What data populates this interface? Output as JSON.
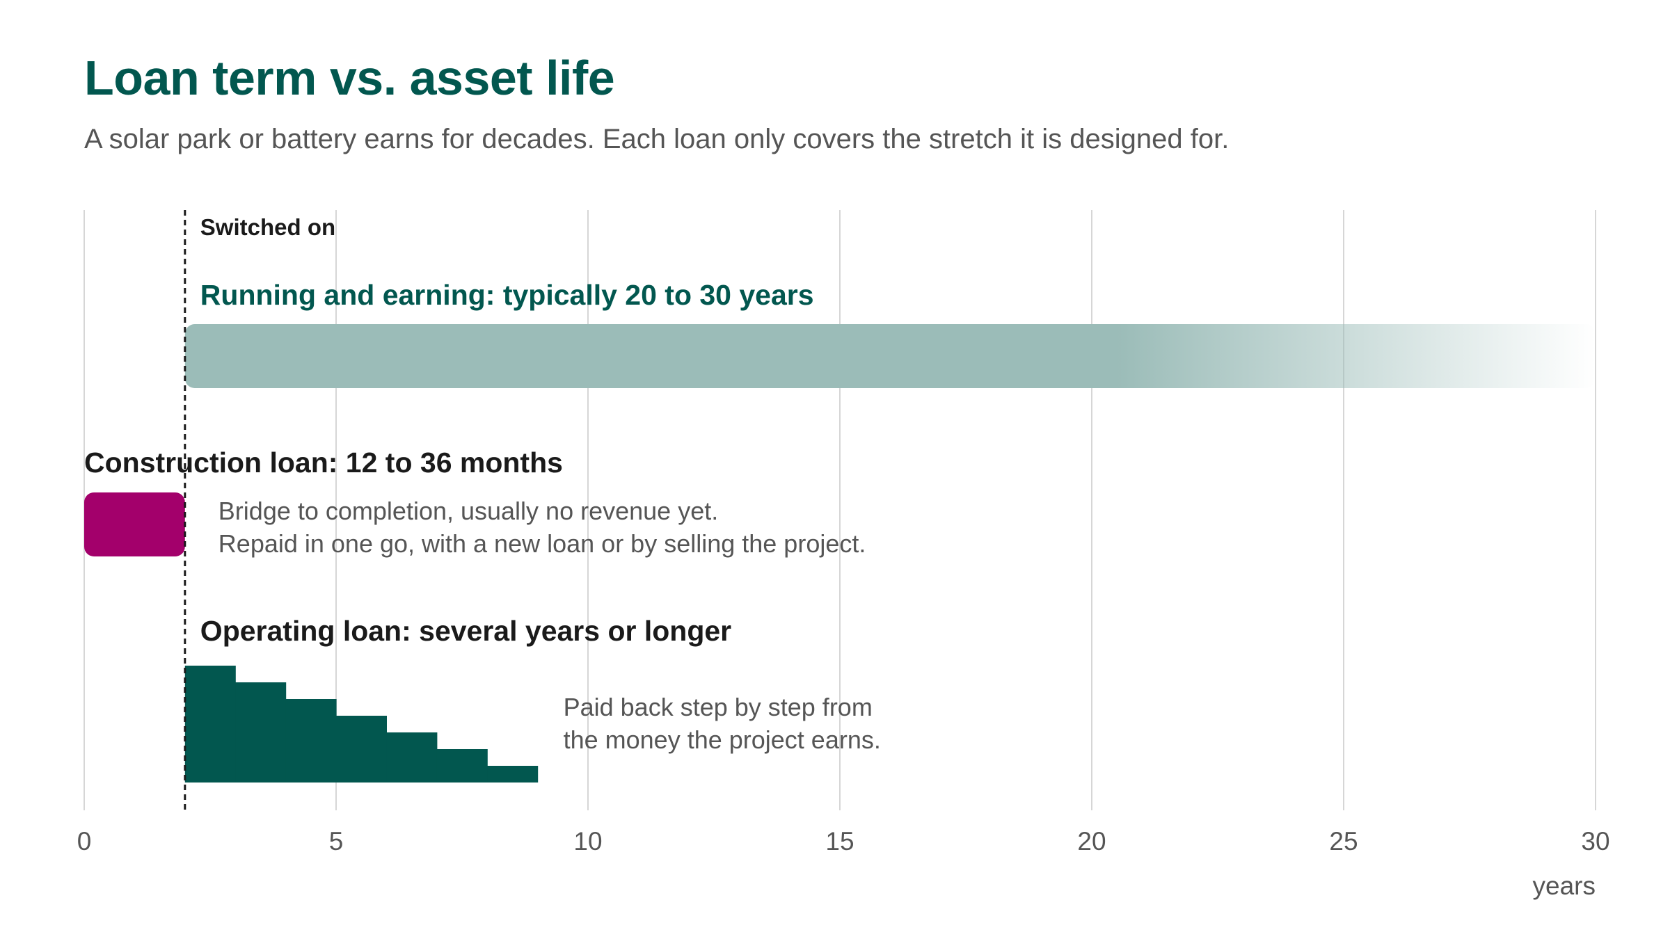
{
  "header": {
    "title": "Loan term vs. asset life",
    "subtitle": "A solar park or battery earns for decades. Each loan only covers the stretch it is designed for."
  },
  "chart_data": {
    "type": "timeline",
    "x_axis": {
      "label": "years",
      "range": [
        0,
        30
      ],
      "ticks": [
        0,
        5,
        10,
        15,
        20,
        25,
        30
      ],
      "grid": true
    },
    "marker": {
      "x": 2,
      "label": "Switched on"
    },
    "asset_life": {
      "label": "Running and earning: typically 20 to 30 years",
      "start": 2,
      "solid_until": 20.5,
      "fade_end": 30
    },
    "construction_loan": {
      "label": "Construction loan: 12 to 36 months",
      "start": 0,
      "end": 2,
      "note": [
        "Bridge to completion, usually no revenue yet.",
        "Repaid in one go, with a new loan or by selling the project."
      ]
    },
    "operating_loan": {
      "label": "Operating loan: several years or longer",
      "steps": [
        {
          "start": 2,
          "end": 3,
          "level": 7
        },
        {
          "start": 3,
          "end": 4,
          "level": 6
        },
        {
          "start": 4,
          "end": 5,
          "level": 5
        },
        {
          "start": 5,
          "end": 6,
          "level": 4
        },
        {
          "start": 6,
          "end": 7,
          "level": 3
        },
        {
          "start": 7,
          "end": 8,
          "level": 2
        },
        {
          "start": 8,
          "end": 9,
          "level": 1
        }
      ],
      "note": [
        "Paid back step by step from",
        "the money the project earns."
      ]
    },
    "colors": {
      "teal_dark": "#02574f",
      "teal_light": "#9bbcb8",
      "magenta": "#a3006b",
      "grid": "#d6d6d6",
      "text_dark": "#1a1a1a",
      "text_grey": "#555555"
    }
  }
}
